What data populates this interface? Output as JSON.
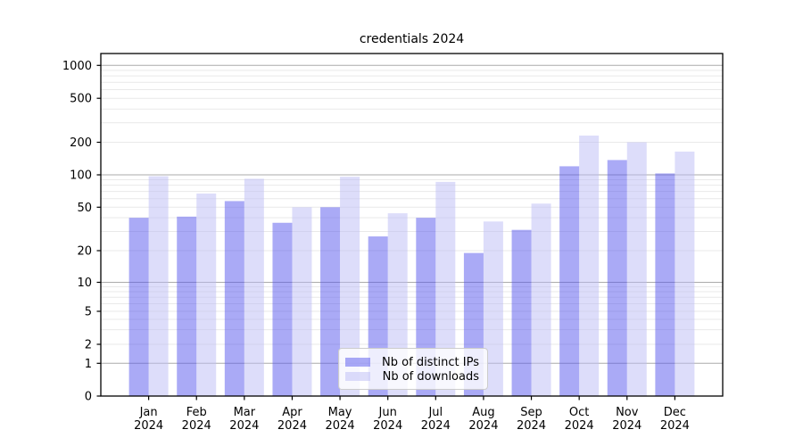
{
  "chart_data": {
    "type": "bar",
    "title": "credentials 2024",
    "categories": [
      "Jan",
      "Feb",
      "Mar",
      "Apr",
      "May",
      "Jun",
      "Jul",
      "Aug",
      "Sep",
      "Oct",
      "Nov",
      "Dec"
    ],
    "category_year": "2024",
    "series": [
      {
        "name": "Nb of distinct IPs",
        "color": "#5555ee",
        "alpha": 0.5,
        "values": [
          40,
          41,
          57,
          36,
          50,
          27,
          40,
          19,
          31,
          120,
          137,
          103
        ]
      },
      {
        "name": "Nb of downloads",
        "color": "#bbbbf6",
        "alpha": 0.5,
        "values": [
          97,
          67,
          92,
          50,
          96,
          44,
          86,
          37,
          54,
          230,
          200,
          164
        ]
      }
    ],
    "xlabel": "",
    "ylabel": "",
    "y_axis": {
      "scale": "symlog-like",
      "ticks": [
        0,
        1,
        2,
        5,
        10,
        20,
        50,
        100,
        200,
        500,
        1000
      ],
      "ylim": [
        0,
        1260
      ]
    },
    "grid": {
      "major_values": [
        1,
        10,
        100,
        1000
      ],
      "minor_values": [
        2,
        3,
        4,
        5,
        6,
        7,
        8,
        9,
        20,
        30,
        40,
        50,
        60,
        70,
        80,
        90,
        200,
        300,
        400,
        500,
        600,
        700,
        800,
        900
      ],
      "major_color": "#ababab",
      "minor_color": "#e9e9e9"
    },
    "legend": {
      "position": "lower-center"
    }
  }
}
